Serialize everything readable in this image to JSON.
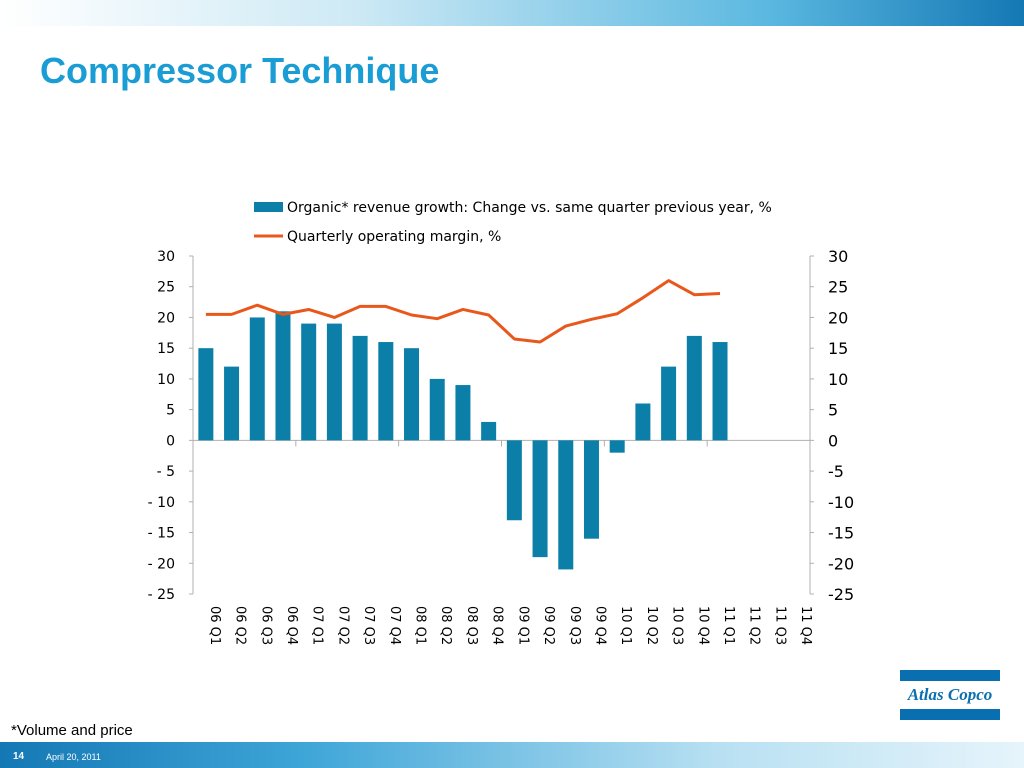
{
  "slide": {
    "title": "Compressor Technique",
    "footnote": "*Volume and price",
    "page_number": "14",
    "date": "April 20, 2011",
    "logo_text": "Atlas Copco"
  },
  "colors": {
    "band_dark": "#1478b4",
    "band_light": "#b8e0f2",
    "bar": "#0b7fa8",
    "line": "#e8581c",
    "title": "#1a9dd4"
  },
  "chart_data": {
    "type": "bar",
    "categories": [
      "06 Q1",
      "06 Q2",
      "06 Q3",
      "06 Q4",
      "07 Q1",
      "07 Q2",
      "07 Q3",
      "07 Q4",
      "08 Q1",
      "08 Q2",
      "08 Q3",
      "08 Q4",
      "09 Q1",
      "09 Q2",
      "09 Q3",
      "09 Q4",
      "10 Q1",
      "10 Q2",
      "10 Q3",
      "10 Q4",
      "11 Q1",
      "11 Q2",
      "11 Q3",
      "11 Q4"
    ],
    "series": [
      {
        "name": "Organic* revenue growth: Change vs. same quarter previous year, %",
        "type": "bar",
        "axis": "left",
        "values": [
          15,
          12,
          20,
          21,
          19,
          19,
          17,
          16,
          15,
          10,
          9,
          3,
          -13,
          -19,
          -21,
          -16,
          -2,
          6,
          12,
          17,
          16,
          null,
          null,
          null
        ]
      },
      {
        "name": "Quarterly operating margin, %",
        "type": "line",
        "axis": "right",
        "values": [
          20.5,
          20.5,
          22,
          20.5,
          21.3,
          20,
          21.8,
          21.8,
          20.4,
          19.8,
          21.3,
          20.4,
          16.5,
          16,
          18.6,
          19.7,
          20.6,
          23.2,
          26,
          23.7,
          23.9,
          null,
          null,
          null
        ]
      }
    ],
    "ylim_left": [
      -25,
      30
    ],
    "ylim_right": [
      -25,
      30
    ],
    "yticks_left": [
      "30",
      "25",
      "20",
      "15",
      "10",
      "5",
      "0",
      "- 5",
      "- 10",
      "- 15",
      "- 20",
      "- 25"
    ],
    "yticks_right": [
      "30",
      "25",
      "20",
      "15",
      "10",
      "5",
      "0",
      "-5",
      "-10",
      "-15",
      "-20",
      "-25"
    ],
    "legend_position": "top",
    "grid": false,
    "title": "",
    "xlabel": "",
    "ylabel": ""
  }
}
